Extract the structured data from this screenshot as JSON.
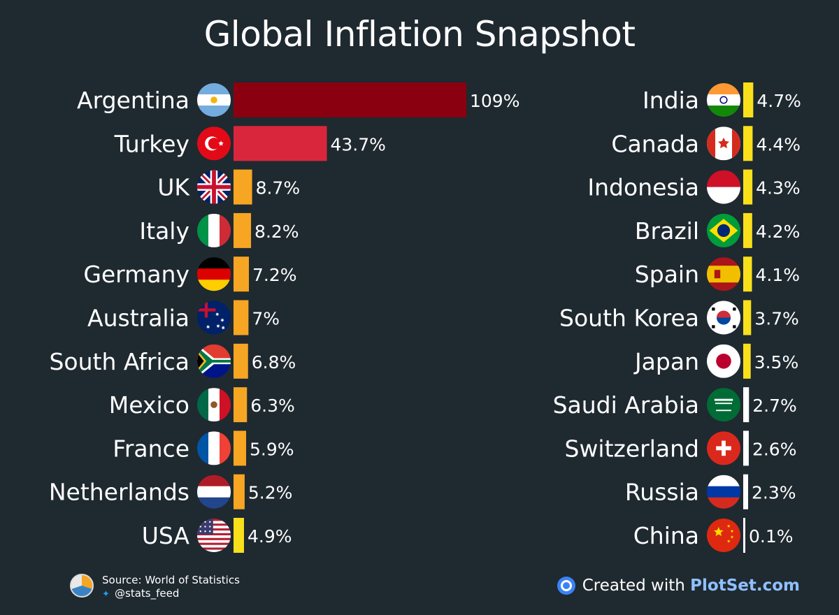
{
  "title": "Global Inflation Snapshot",
  "colors": {
    "background": "#1f2930",
    "dark_red": "#8a0010",
    "red": "#d9263c",
    "orange": "#f6a623",
    "yellow": "#f9e01b",
    "white": "#ffffff"
  },
  "chart_data": {
    "type": "bar",
    "title": "Global Inflation Snapshot",
    "unit": "%",
    "orientation": "horizontal",
    "groups": [
      {
        "items": [
          {
            "country": "Argentina",
            "value": 109,
            "label": "109%",
            "color": "#8a0010",
            "flag": "argentina-flag-icon"
          },
          {
            "country": "Turkey",
            "value": 43.7,
            "label": "43.7%",
            "color": "#d9263c",
            "flag": "turkey-flag-icon"
          },
          {
            "country": "UK",
            "value": 8.7,
            "label": "8.7%",
            "color": "#f6a623",
            "flag": "uk-flag-icon"
          },
          {
            "country": "Italy",
            "value": 8.2,
            "label": "8.2%",
            "color": "#f6a623",
            "flag": "italy-flag-icon"
          },
          {
            "country": "Germany",
            "value": 7.2,
            "label": "7.2%",
            "color": "#f6a623",
            "flag": "germany-flag-icon"
          },
          {
            "country": "Australia",
            "value": 7,
            "label": "7%",
            "color": "#f6a623",
            "flag": "australia-flag-icon"
          },
          {
            "country": "South Africa",
            "value": 6.8,
            "label": "6.8%",
            "color": "#f6a623",
            "flag": "south-africa-flag-icon"
          },
          {
            "country": "Mexico",
            "value": 6.3,
            "label": "6.3%",
            "color": "#f6a623",
            "flag": "mexico-flag-icon"
          },
          {
            "country": "France",
            "value": 5.9,
            "label": "5.9%",
            "color": "#f6a623",
            "flag": "france-flag-icon"
          },
          {
            "country": "Netherlands",
            "value": 5.2,
            "label": "5.2%",
            "color": "#f6a623",
            "flag": "netherlands-flag-icon"
          },
          {
            "country": "USA",
            "value": 4.9,
            "label": "4.9%",
            "color": "#f9e01b",
            "flag": "usa-flag-icon"
          }
        ]
      },
      {
        "items": [
          {
            "country": "India",
            "value": 4.7,
            "label": "4.7%",
            "color": "#f9e01b",
            "flag": "india-flag-icon"
          },
          {
            "country": "Canada",
            "value": 4.4,
            "label": "4.4%",
            "color": "#f9e01b",
            "flag": "canada-flag-icon"
          },
          {
            "country": "Indonesia",
            "value": 4.3,
            "label": "4.3%",
            "color": "#f9e01b",
            "flag": "indonesia-flag-icon"
          },
          {
            "country": "Brazil",
            "value": 4.2,
            "label": "4.2%",
            "color": "#f9e01b",
            "flag": "brazil-flag-icon"
          },
          {
            "country": "Spain",
            "value": 4.1,
            "label": "4.1%",
            "color": "#f9e01b",
            "flag": "spain-flag-icon"
          },
          {
            "country": "South Korea",
            "value": 3.7,
            "label": "3.7%",
            "color": "#f9e01b",
            "flag": "south-korea-flag-icon"
          },
          {
            "country": "Japan",
            "value": 3.5,
            "label": "3.5%",
            "color": "#f9e01b",
            "flag": "japan-flag-icon"
          },
          {
            "country": "Saudi Arabia",
            "value": 2.7,
            "label": "2.7%",
            "color": "#ffffff",
            "flag": "saudi-arabia-flag-icon"
          },
          {
            "country": "Switzerland",
            "value": 2.6,
            "label": "2.6%",
            "color": "#ffffff",
            "flag": "switzerland-flag-icon"
          },
          {
            "country": "Russia",
            "value": 2.3,
            "label": "2.3%",
            "color": "#ffffff",
            "flag": "russia-flag-icon"
          },
          {
            "country": "China",
            "value": 0.1,
            "label": "0.1%",
            "color": "#ffffff",
            "flag": "china-flag-icon"
          }
        ]
      }
    ]
  },
  "footer": {
    "source": "Source: World of Statistics",
    "twitter": "@stats_feed",
    "twitter_icon": "twitter-icon",
    "created_prefix": "Created with ",
    "brand": "PlotSet.com",
    "brand_icon": "plotset-logo-icon"
  }
}
